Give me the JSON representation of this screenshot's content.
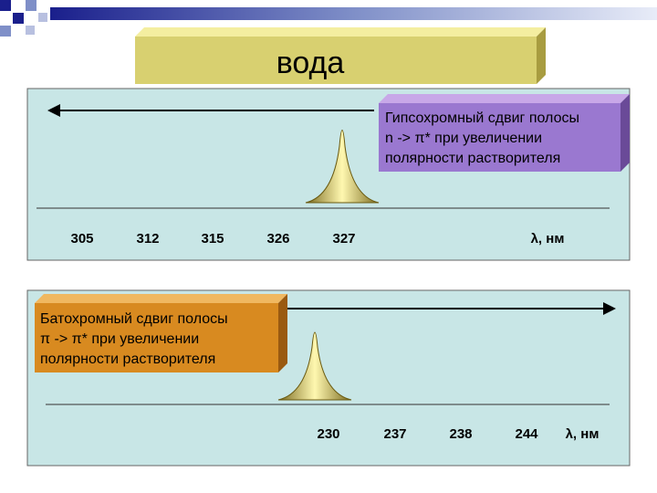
{
  "title": "вода",
  "panels": [
    {
      "box_lines": [
        "Гипсохромный сдвиг полосы",
        "n -> π* при увеличении",
        "полярности растворителя"
      ],
      "scale": [
        305,
        312,
        315,
        326,
        327
      ],
      "axis_label": "λ, нм"
    },
    {
      "box_lines": [
        "Батохромный сдвиг полосы",
        "π -> π* при увеличении",
        "полярности растворителя"
      ],
      "scale": [
        230,
        237,
        238,
        244
      ],
      "axis_label": "λ, нм"
    }
  ]
}
